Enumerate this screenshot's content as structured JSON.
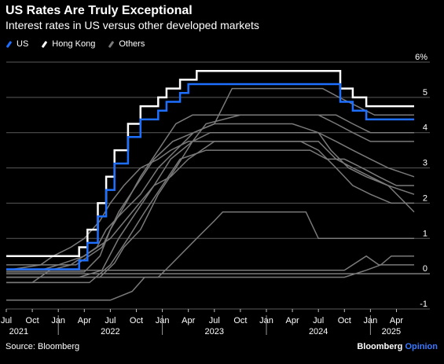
{
  "header": {
    "title": "US Rates Are Truly Exceptional",
    "subtitle": "Interest rates in US versus other developed markets"
  },
  "legend": [
    {
      "label": "US",
      "color": "#1f6fff"
    },
    {
      "label": "Hong Kong",
      "color": "#ffffff"
    },
    {
      "label": "Others",
      "color": "#7a7a7a"
    }
  ],
  "footer": {
    "source": "Source: Bloomberg",
    "brand": "Bloomberg",
    "brand_suffix": "Opinion"
  },
  "chart_data": {
    "type": "line",
    "title": "US Rates Are Truly Exceptional",
    "subtitle": "Interest rates in US versus other developed markets",
    "ylim": [
      -1,
      6
    ],
    "y_axis_side": "right",
    "y_ticks": [
      {
        "value": 6,
        "label": "6%"
      },
      {
        "value": 5,
        "label": "5"
      },
      {
        "value": 4,
        "label": "4"
      },
      {
        "value": 3,
        "label": "3"
      },
      {
        "value": 2,
        "label": "2"
      },
      {
        "value": 1,
        "label": "1"
      },
      {
        "value": 0,
        "label": "0"
      },
      {
        "value": -1,
        "label": "-1"
      }
    ],
    "x_range": [
      2021.5,
      2025.42
    ],
    "x_ticks": [
      {
        "value": 2021.5,
        "label": "Jul"
      },
      {
        "value": 2021.75,
        "label": "Oct"
      },
      {
        "value": 2022.0,
        "label": "Jan"
      },
      {
        "value": 2022.25,
        "label": "Apr"
      },
      {
        "value": 2022.5,
        "label": "Jul"
      },
      {
        "value": 2022.75,
        "label": "Oct"
      },
      {
        "value": 2023.0,
        "label": "Jan"
      },
      {
        "value": 2023.25,
        "label": "Apr"
      },
      {
        "value": 2023.5,
        "label": "Jul"
      },
      {
        "value": 2023.75,
        "label": "Oct"
      },
      {
        "value": 2024.0,
        "label": "Jan"
      },
      {
        "value": 2024.25,
        "label": "Apr"
      },
      {
        "value": 2024.5,
        "label": "Jul"
      },
      {
        "value": 2024.75,
        "label": "Oct"
      },
      {
        "value": 2025.0,
        "label": "Jan"
      },
      {
        "value": 2025.25,
        "label": "Apr"
      }
    ],
    "year_labels": [
      {
        "value": 2021.62,
        "label": "2021"
      },
      {
        "value": 2022.5,
        "label": "2022"
      },
      {
        "value": 2023.5,
        "label": "2023"
      },
      {
        "value": 2024.5,
        "label": "2024"
      },
      {
        "value": 2025.2,
        "label": "2025"
      }
    ],
    "year_dividers": [
      2022.0,
      2023.0,
      2024.0,
      2025.0
    ],
    "grid": true,
    "legend_position": "top-left",
    "series": [
      {
        "name": "US",
        "color": "#1f6fff",
        "width": 2.5,
        "x": [
          2021.5,
          2022.2,
          2022.2,
          2022.28,
          2022.28,
          2022.38,
          2022.38,
          2022.46,
          2022.46,
          2022.54,
          2022.54,
          2022.67,
          2022.67,
          2022.79,
          2022.79,
          2022.96,
          2022.96,
          2023.04,
          2023.04,
          2023.17,
          2023.17,
          2023.25,
          2023.25,
          2023.33,
          2023.33,
          2023.54,
          2023.54,
          2024.71,
          2024.71,
          2024.83,
          2024.83,
          2024.96,
          2024.96,
          2025.42
        ],
        "y": [
          0.125,
          0.125,
          0.375,
          0.375,
          0.875,
          0.875,
          1.625,
          1.625,
          2.375,
          2.375,
          3.125,
          3.125,
          3.875,
          3.875,
          4.375,
          4.375,
          4.625,
          4.625,
          4.875,
          4.875,
          5.125,
          5.125,
          5.375,
          5.375,
          5.375,
          5.375,
          5.375,
          5.375,
          4.875,
          4.875,
          4.625,
          4.625,
          4.375,
          4.375
        ]
      },
      {
        "name": "Hong Kong",
        "color": "#ffffff",
        "width": 2.5,
        "x": [
          2021.5,
          2022.2,
          2022.2,
          2022.28,
          2022.28,
          2022.38,
          2022.38,
          2022.46,
          2022.46,
          2022.54,
          2022.54,
          2022.67,
          2022.67,
          2022.79,
          2022.79,
          2022.96,
          2022.96,
          2023.04,
          2023.04,
          2023.17,
          2023.17,
          2023.25,
          2023.25,
          2023.33,
          2023.33,
          2023.54,
          2023.54,
          2024.71,
          2024.71,
          2024.83,
          2024.83,
          2024.96,
          2024.96,
          2025.42
        ],
        "y": [
          0.5,
          0.5,
          0.75,
          0.75,
          1.25,
          1.25,
          2.0,
          2.0,
          2.75,
          2.75,
          3.5,
          3.5,
          4.25,
          4.25,
          4.75,
          4.75,
          5.0,
          5.0,
          5.25,
          5.25,
          5.5,
          5.5,
          5.5,
          5.5,
          5.75,
          5.75,
          5.75,
          5.75,
          5.25,
          5.25,
          5.0,
          5.0,
          4.75,
          4.75
        ]
      },
      {
        "name": "",
        "color": "#7a7a7a",
        "width": 1.5,
        "x": [
          2021.5,
          2021.92,
          2022.12,
          2022.37,
          2022.46,
          2022.62,
          2022.79,
          2022.96,
          2023.13,
          2023.3,
          2023.5,
          2023.67,
          2024.54,
          2024.7,
          2024.87,
          2025.04,
          2025.2,
          2025.42
        ],
        "y": [
          0.1,
          0.1,
          0.25,
          0.75,
          1.25,
          1.75,
          2.25,
          3.0,
          3.5,
          4.0,
          4.25,
          5.25,
          5.25,
          5.0,
          4.75,
          4.5,
          4.5,
          4.5
        ]
      },
      {
        "name": "",
        "color": "#7a7a7a",
        "width": 1.5,
        "x": [
          2021.5,
          2021.83,
          2022.0,
          2022.25,
          2022.5,
          2022.71,
          2022.92,
          2023.08,
          2023.29,
          2023.46,
          2023.6,
          2024.5,
          2024.67,
          2024.83,
          2025.0,
          2025.17,
          2025.42
        ],
        "y": [
          0.1,
          0.1,
          0.25,
          0.5,
          1.0,
          1.75,
          2.5,
          3.25,
          3.75,
          4.0,
          4.0,
          4.0,
          3.75,
          3.5,
          3.25,
          3.0,
          2.75
        ]
      },
      {
        "name": "",
        "color": "#7a7a7a",
        "width": 1.5,
        "x": [
          2021.5,
          2022.17,
          2022.42,
          2022.58,
          2022.75,
          2022.92,
          2023.1,
          2023.3,
          2023.5,
          2023.75,
          2024.0,
          2024.25,
          2024.5,
          2024.62,
          2024.79,
          2024.96,
          2025.17,
          2025.42
        ],
        "y": [
          0.25,
          0.25,
          0.75,
          1.75,
          2.5,
          3.25,
          3.75,
          4.0,
          4.25,
          4.25,
          4.25,
          4.25,
          4.0,
          3.5,
          3.0,
          2.75,
          2.5,
          2.25
        ]
      },
      {
        "name": "",
        "color": "#7a7a7a",
        "width": 1.5,
        "x": [
          2021.5,
          2022.3,
          2022.5,
          2022.67,
          2022.83,
          2023.0,
          2023.17,
          2023.42,
          2023.67,
          2024.42,
          2024.58,
          2024.75,
          2024.92,
          2025.08,
          2025.25,
          2025.42
        ],
        "y": [
          -0.25,
          -0.25,
          0.25,
          1.0,
          1.75,
          2.5,
          3.25,
          3.5,
          3.5,
          3.5,
          3.25,
          3.25,
          3.0,
          2.75,
          2.5,
          2.5
        ]
      },
      {
        "name": "",
        "color": "#7a7a7a",
        "width": 1.5,
        "x": [
          2021.5,
          2022.2,
          2022.42,
          2022.58,
          2022.75,
          2022.92,
          2023.08,
          2023.25,
          2023.5,
          2024.33,
          2024.5,
          2024.67,
          2024.83,
          2025.0,
          2025.2,
          2025.42
        ],
        "y": [
          -0.1,
          -0.1,
          0.1,
          1.0,
          1.75,
          2.5,
          2.75,
          3.25,
          3.75,
          3.75,
          3.5,
          3.0,
          2.5,
          2.25,
          2.0,
          2.0
        ]
      },
      {
        "name": "",
        "color": "#7a7a7a",
        "width": 1.5,
        "x": [
          2021.5,
          2021.83,
          2021.95,
          2022.12,
          2022.25,
          2022.4,
          2022.5,
          2022.63,
          2022.79,
          2022.96,
          2023.08,
          2023.25,
          2023.42,
          2024.5,
          2024.67,
          2024.83,
          2025.0,
          2025.17,
          2025.42
        ],
        "y": [
          0.1,
          0.25,
          0.5,
          0.75,
          1.0,
          1.5,
          2.0,
          2.5,
          3.0,
          3.25,
          3.5,
          3.75,
          3.75,
          3.75,
          3.25,
          3.0,
          2.75,
          2.5,
          1.75
        ]
      },
      {
        "name": "",
        "color": "#7a7a7a",
        "width": 1.5,
        "x": [
          2021.5,
          2022.4,
          2022.54,
          2022.63,
          2022.79,
          2022.96,
          2023.13,
          2023.29,
          2023.42,
          2023.75,
          2024.0,
          2024.25,
          2024.5,
          2024.67,
          2024.83,
          2025.0,
          2025.42
        ],
        "y": [
          -0.1,
          -0.1,
          0.3,
          0.75,
          1.25,
          2.25,
          3.0,
          3.75,
          4.25,
          4.5,
          4.5,
          4.5,
          4.5,
          4.5,
          4.25,
          4.0,
          4.0
        ]
      },
      {
        "name": "",
        "color": "#7a7a7a",
        "width": 1.5,
        "x": [
          2021.5,
          2022.25,
          2022.4,
          2022.5,
          2022.65,
          2022.79,
          2022.96,
          2023.13,
          2023.29,
          2023.5,
          2023.75,
          2024.5,
          2024.67,
          2024.83,
          2025.0,
          2025.17,
          2025.42
        ],
        "y": [
          0.05,
          0.05,
          0.5,
          1.25,
          2.0,
          2.75,
          3.5,
          4.25,
          4.5,
          4.5,
          4.5,
          4.5,
          4.25,
          4.0,
          3.75,
          3.75,
          3.75
        ]
      },
      {
        "name": "",
        "color": "#7a7a7a",
        "width": 1.5,
        "x": [
          2021.5,
          2022.96,
          2023.08,
          2023.33,
          2023.5,
          2023.58,
          2023.75,
          2024.0,
          2024.17,
          2024.25,
          2024.38,
          2024.5,
          2025.42
        ],
        "y": [
          -0.1,
          -0.1,
          0.25,
          1.0,
          1.5,
          1.75,
          1.75,
          1.75,
          1.75,
          1.75,
          1.75,
          1.0,
          1.0
        ]
      },
      {
        "name": "",
        "color": "#7a7a7a",
        "width": 1.5,
        "x": [
          2021.5,
          2022.5,
          2022.71,
          2022.83,
          2024.75,
          2024.96,
          2025.1,
          2025.2,
          2025.42
        ],
        "y": [
          -0.75,
          -0.75,
          -0.5,
          -0.1,
          -0.1,
          0.1,
          0.25,
          0.5,
          0.5
        ]
      },
      {
        "name": "",
        "color": "#7a7a7a",
        "width": 1.5,
        "x": [
          2021.5,
          2021.75,
          2021.92,
          2022.13,
          2022.5,
          2022.75,
          2023.08,
          2023.5,
          2024.17,
          2024.75,
          2024.96,
          2025.08,
          2025.42
        ],
        "y": [
          -0.25,
          -0.25,
          0.1,
          0.1,
          0.1,
          0.1,
          0.1,
          0.1,
          0.1,
          0.1,
          0.5,
          0.25,
          0.25
        ]
      }
    ]
  }
}
